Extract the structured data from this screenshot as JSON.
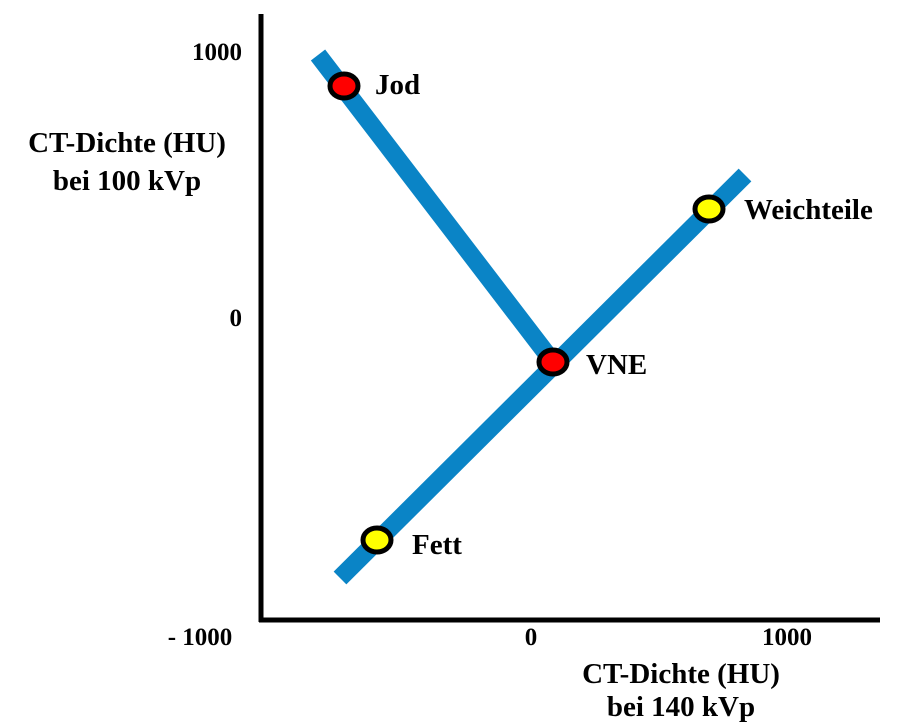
{
  "y_axis": {
    "title_line1": "CT-Dichte (HU)",
    "title_line2": "bei 100 kVp",
    "tick_top": "1000",
    "tick_mid": "0"
  },
  "x_axis": {
    "title_line1": "CT-Dichte (HU)",
    "title_line2": "bei 140 kVp",
    "tick_left": "- 1000",
    "tick_mid": "0",
    "tick_right": "1000"
  },
  "colors": {
    "line": "#0A84C6",
    "iodine_marker": "#FF0000",
    "tissue_marker": "#FFFF00",
    "marker_outline": "#000000",
    "axis": "#000000"
  },
  "points": {
    "jod": {
      "label": "Jod",
      "color": "#FF0000"
    },
    "weichteile": {
      "label": "Weichteile",
      "color": "#FFFF00"
    },
    "vne": {
      "label": "VNE",
      "color": "#FF0000"
    },
    "fett": {
      "label": "Fett",
      "color": "#FFFF00"
    }
  }
}
